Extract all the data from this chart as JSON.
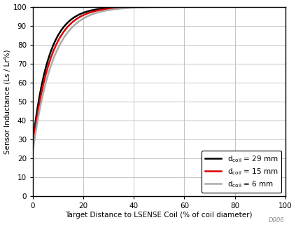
{
  "xlabel": "Target Distance to LSENSE Coil (% of coil diameter)",
  "ylabel": "Sensor Inductance (Ls / Lr%)",
  "xlim": [
    0,
    100
  ],
  "ylim": [
    0,
    100
  ],
  "xticks": [
    0,
    20,
    40,
    60,
    80,
    100
  ],
  "yticks": [
    0,
    10,
    20,
    30,
    40,
    50,
    60,
    70,
    80,
    90,
    100
  ],
  "annotation": "D006",
  "curves": [
    {
      "label": "d$_\\mathregular{coil}$ = 29 mm",
      "color": "#000000",
      "linewidth": 1.8,
      "y0": 29.0,
      "k": 0.155
    },
    {
      "label": "d$_\\mathregular{coil}$ = 15 mm",
      "color": "#dd0000",
      "linewidth": 1.8,
      "y0": 27.0,
      "k": 0.14
    },
    {
      "label": "d$_\\mathregular{coil}$ = 6 mm",
      "color": "#aaaaaa",
      "linewidth": 1.8,
      "y0": 24.0,
      "k": 0.125
    }
  ],
  "background_color": "#ffffff",
  "grid_color": "#bbbbbb",
  "xlabel_fontsize": 7.5,
  "ylabel_fontsize": 7.5,
  "tick_fontsize": 7.5,
  "legend_fontsize": 7.5
}
